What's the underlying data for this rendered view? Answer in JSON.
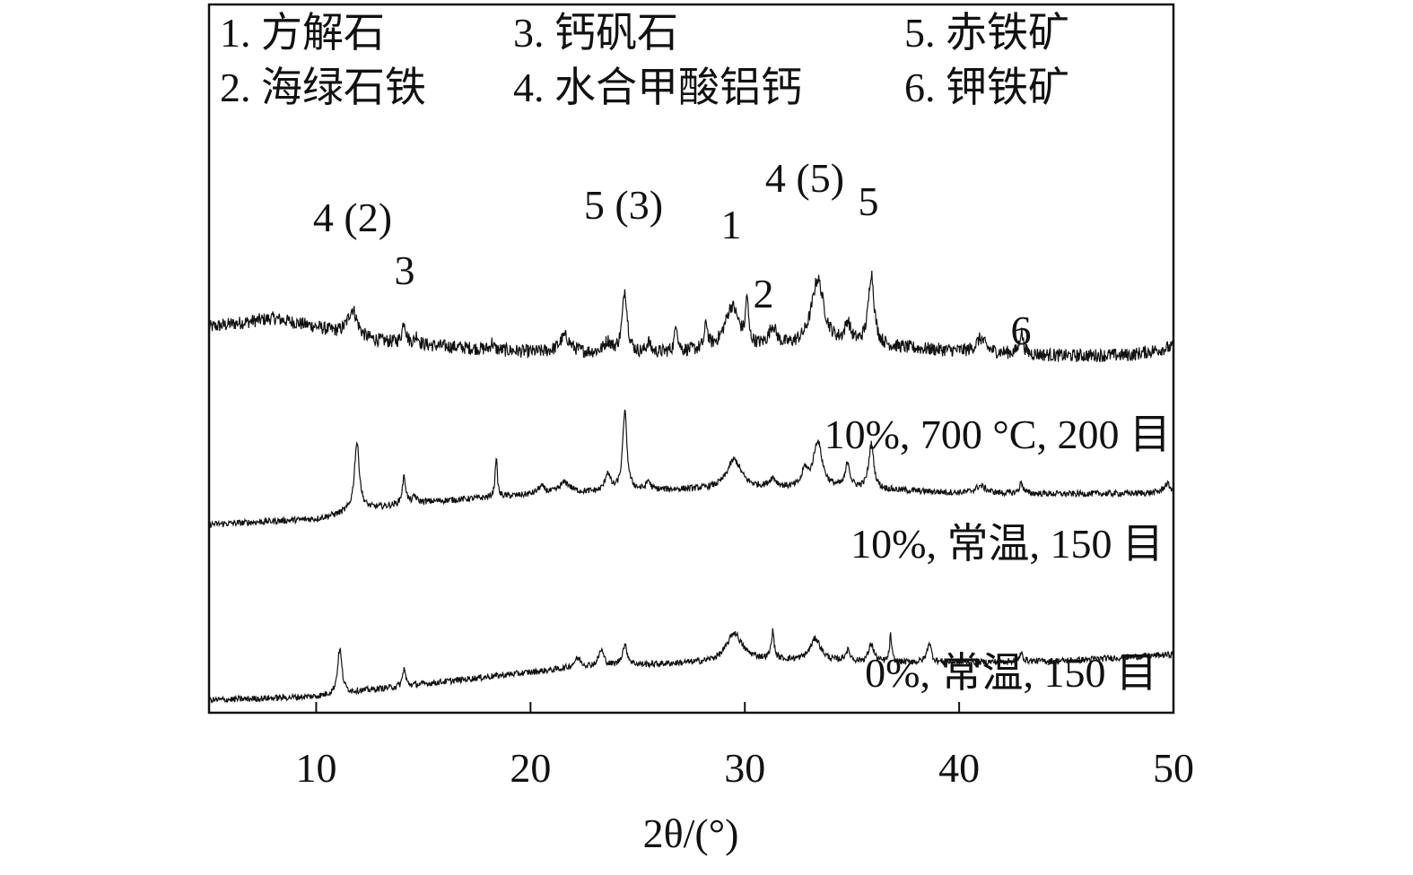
{
  "legend": [
    {
      "num": "1.",
      "name": "方解石"
    },
    {
      "num": "2.",
      "name": "海绿石铁"
    },
    {
      "num": "3.",
      "name": "钙矾石"
    },
    {
      "num": "4.",
      "name": "水合甲酸铝钙"
    },
    {
      "num": "5.",
      "name": "赤铁矿"
    },
    {
      "num": "6.",
      "name": "钾铁矿"
    }
  ],
  "chart_data": {
    "type": "line",
    "xlabel": "2θ/(°)",
    "ylabel": "",
    "xlim": [
      5,
      50
    ],
    "xticks": [
      10,
      20,
      30,
      40,
      50
    ],
    "y_axis_shown": false,
    "series": [
      {
        "name": "10%, 700 °C, 200 目",
        "baseline": [
          [
            5,
            0.3
          ],
          [
            8,
            0.4
          ],
          [
            10,
            0.3
          ],
          [
            12,
            0.16
          ],
          [
            15,
            0.1
          ],
          [
            20,
            0.02
          ],
          [
            25,
            0
          ],
          [
            30,
            0.05
          ],
          [
            35,
            0.1
          ],
          [
            40,
            0.03
          ],
          [
            45,
            -0.02
          ],
          [
            48,
            -0.01
          ],
          [
            50,
            0.08
          ]
        ],
        "peaks": [
          [
            11.7,
            0.32,
            0.28
          ],
          [
            14.1,
            0.25,
            0.1
          ],
          [
            14.7,
            0.1,
            0.1
          ],
          [
            18.2,
            0.08,
            0.08
          ],
          [
            21.6,
            0.18,
            0.3
          ],
          [
            23.6,
            0.12,
            0.2
          ],
          [
            24.4,
            0.7,
            0.14
          ],
          [
            25.5,
            0.12,
            0.1
          ],
          [
            26.8,
            0.32,
            0.08
          ],
          [
            28.2,
            0.28,
            0.08
          ],
          [
            29.4,
            0.48,
            0.4
          ],
          [
            30.1,
            0.5,
            0.07
          ],
          [
            31.3,
            0.22,
            0.2
          ],
          [
            33.4,
            0.74,
            0.35
          ],
          [
            34.8,
            0.22,
            0.15
          ],
          [
            35.9,
            0.8,
            0.16
          ],
          [
            41,
            0.15,
            0.25
          ],
          [
            42.9,
            0.25,
            0.1
          ]
        ]
      },
      {
        "name": "10%, 常温, 150 目",
        "baseline": [
          [
            5,
            -0.3
          ],
          [
            10,
            -0.24
          ],
          [
            12,
            -0.14
          ],
          [
            15,
            -0.05
          ],
          [
            20,
            0.03
          ],
          [
            25,
            0.08
          ],
          [
            30,
            0.1
          ],
          [
            35,
            0.1
          ],
          [
            40,
            0.05
          ],
          [
            45,
            0.04
          ],
          [
            50,
            0.05
          ]
        ],
        "peaks": [
          [
            11.9,
            0.76,
            0.14
          ],
          [
            14.1,
            0.3,
            0.1
          ],
          [
            14.6,
            0.07,
            0.1
          ],
          [
            18.4,
            0.45,
            0.06
          ],
          [
            20.5,
            0.08,
            0.2
          ],
          [
            21.6,
            0.12,
            0.3
          ],
          [
            23.6,
            0.2,
            0.14
          ],
          [
            24.4,
            0.88,
            0.12
          ],
          [
            25.5,
            0.1,
            0.1
          ],
          [
            29.5,
            0.32,
            0.4
          ],
          [
            31.3,
            0.1,
            0.2
          ],
          [
            32.8,
            0.18,
            0.15
          ],
          [
            33.4,
            0.52,
            0.25
          ],
          [
            34.8,
            0.28,
            0.12
          ],
          [
            35.9,
            0.5,
            0.14
          ],
          [
            41,
            0.08,
            0.3
          ],
          [
            42.9,
            0.12,
            0.1
          ],
          [
            49.7,
            0.1,
            0.2
          ]
        ]
      },
      {
        "name": "0%, 常温, 150 目",
        "baseline": [
          [
            5,
            -0.56
          ],
          [
            10,
            -0.52
          ],
          [
            12,
            -0.46
          ],
          [
            15,
            -0.38
          ],
          [
            18,
            -0.3
          ],
          [
            20,
            -0.25
          ],
          [
            22,
            -0.2
          ],
          [
            25,
            -0.17
          ],
          [
            28,
            -0.14
          ],
          [
            30,
            -0.1
          ],
          [
            35,
            -0.14
          ],
          [
            40,
            -0.14
          ],
          [
            45,
            -0.12
          ],
          [
            50,
            -0.05
          ]
        ],
        "peaks": [
          [
            11.1,
            0.5,
            0.12
          ],
          [
            14.1,
            0.2,
            0.08
          ],
          [
            22.2,
            0.1,
            0.2
          ],
          [
            23.3,
            0.18,
            0.15
          ],
          [
            24.4,
            0.22,
            0.15
          ],
          [
            29.5,
            0.3,
            0.4
          ],
          [
            31.3,
            0.3,
            0.08
          ],
          [
            33.3,
            0.25,
            0.3
          ],
          [
            34.8,
            0.12,
            0.15
          ],
          [
            35.9,
            0.2,
            0.15
          ],
          [
            36.8,
            0.3,
            0.06
          ],
          [
            38.6,
            0.22,
            0.12
          ],
          [
            42.9,
            0.08,
            0.12
          ]
        ]
      }
    ],
    "annotations": [
      {
        "label": "4 (2)",
        "x": 11.7
      },
      {
        "label": "3",
        "x": 14.1
      },
      {
        "label": "5 (3)",
        "x": 24.4
      },
      {
        "label": "1",
        "x": 29.6
      },
      {
        "label": "2",
        "x": 31.0
      },
      {
        "label": "4 (5)",
        "x": 33.4
      },
      {
        "label": "5",
        "x": 35.9
      },
      {
        "label": "6",
        "x": 42.9
      }
    ]
  }
}
